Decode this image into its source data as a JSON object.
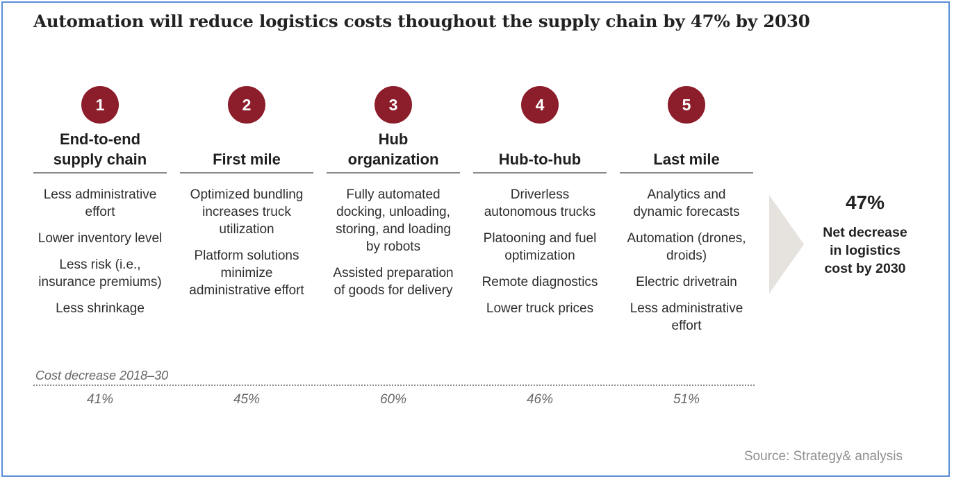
{
  "title": "Automation will reduce logistics costs thoughout the supply chain by 47% by 2030",
  "stages": [
    {
      "number": "1",
      "heading": [
        "End-to-end",
        "supply chain"
      ],
      "items": [
        "Less administrative effort",
        "Lower inventory level",
        "Less risk (i.e., insurance premiums)",
        "Less shrinkage"
      ],
      "cost_decrease": "41%"
    },
    {
      "number": "2",
      "heading": [
        "First mile"
      ],
      "items": [
        "Optimized bundling increases truck utilization",
        "Platform solutions minimize administrative effort"
      ],
      "cost_decrease": "45%"
    },
    {
      "number": "3",
      "heading": [
        "Hub",
        "organization"
      ],
      "items": [
        "Fully automated docking, unloading, storing, and loading by robots",
        "Assisted preparation of goods for delivery"
      ],
      "cost_decrease": "60%"
    },
    {
      "number": "4",
      "heading": [
        "Hub-to-hub"
      ],
      "items": [
        "Driverless autonomous trucks",
        "Platooning and fuel optimization",
        "Remote diagnostics",
        "Lower truck prices"
      ],
      "cost_decrease": "46%"
    },
    {
      "number": "5",
      "heading": [
        "Last mile"
      ],
      "items": [
        "Analytics and dynamic forecasts",
        "Automation (drones, droids)",
        "Electric drivetrain",
        "Less administrative effort"
      ],
      "cost_decrease": "51%"
    }
  ],
  "cost_label": "Cost decrease 2018–30",
  "total": {
    "value": "47%",
    "label": [
      "Net decrease",
      "in logistics",
      "cost by 2030"
    ]
  },
  "source": "Source: Strategy& analysis",
  "colors": {
    "badge": "#8c1d2a",
    "frame": "#5b8fd6",
    "arrow": "#e6e2de"
  }
}
